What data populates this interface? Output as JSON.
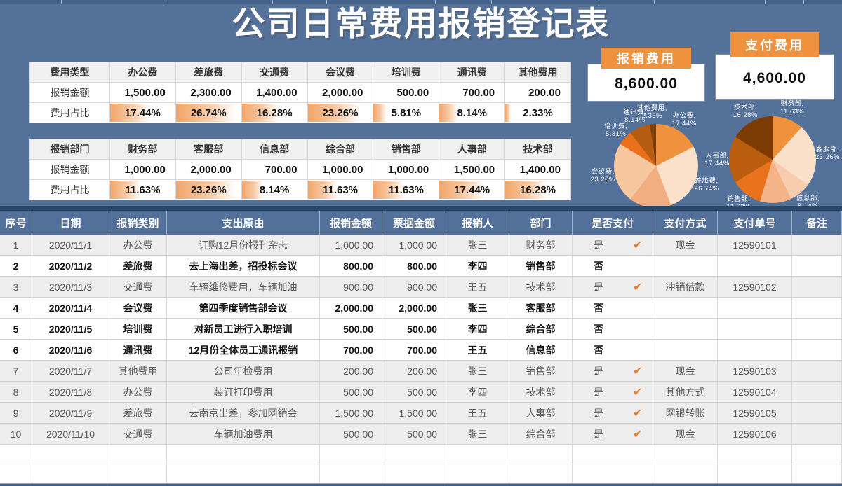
{
  "title": "公司日常费用报销登记表",
  "icons": {
    "check": "✔"
  },
  "colors": {
    "background": "#54719A",
    "accent_orange": "#F0913E",
    "header_blue": "#527099",
    "paid_row_bg": "#EDEDED",
    "check_orange": "#ED7D31",
    "databar_orange": "#F2A567"
  },
  "summary_cards": [
    {
      "label": "报销费用",
      "value": "8,600.00"
    },
    {
      "label": "支付费用",
      "value": "4,600.00"
    }
  ],
  "category_table": {
    "corner_label": "费用类型",
    "amount_row_label": "报销金额",
    "percent_row_label": "费用占比",
    "columns": [
      {
        "name": "办公费",
        "amount": "1,500.00",
        "percent": "17.44%",
        "percent_value": 17.44
      },
      {
        "name": "差旅费",
        "amount": "2,300.00",
        "percent": "26.74%",
        "percent_value": 26.74
      },
      {
        "name": "交通费",
        "amount": "1,400.00",
        "percent": "16.28%",
        "percent_value": 16.28
      },
      {
        "name": "会议费",
        "amount": "2,000.00",
        "percent": "23.26%",
        "percent_value": 23.26
      },
      {
        "name": "培训费",
        "amount": "500.00",
        "percent": "5.81%",
        "percent_value": 5.81
      },
      {
        "name": "通讯费",
        "amount": "700.00",
        "percent": "8.14%",
        "percent_value": 8.14
      },
      {
        "name": "其他费用",
        "amount": "200.00",
        "percent": "2.33%",
        "percent_value": 2.33
      }
    ]
  },
  "department_table": {
    "corner_label": "报销部门",
    "amount_row_label": "报销金额",
    "percent_row_label": "费用占比",
    "columns": [
      {
        "name": "财务部",
        "amount": "1,000.00",
        "percent": "11.63%",
        "percent_value": 11.63
      },
      {
        "name": "客服部",
        "amount": "2,000.00",
        "percent": "23.26%",
        "percent_value": 23.26
      },
      {
        "name": "信息部",
        "amount": "700.00",
        "percent": "8.14%",
        "percent_value": 8.14
      },
      {
        "name": "综合部",
        "amount": "1,000.00",
        "percent": "11.63%",
        "percent_value": 11.63
      },
      {
        "name": "销售部",
        "amount": "1,000.00",
        "percent": "11.63%",
        "percent_value": 11.63
      },
      {
        "name": "人事部",
        "amount": "1,500.00",
        "percent": "17.44%",
        "percent_value": 17.44
      },
      {
        "name": "技术部",
        "amount": "1,400.00",
        "percent": "16.28%",
        "percent_value": 16.28
      }
    ]
  },
  "chart_data": [
    {
      "type": "pie",
      "title": "报销费用",
      "total": "8,600.00",
      "labels": [
        "办公费",
        "差旅费",
        "交通费",
        "会议费",
        "培训费",
        "通讯费",
        "其他费用"
      ],
      "values": [
        17.44,
        26.74,
        16.28,
        23.26,
        5.81,
        8.14,
        2.33
      ],
      "colors": [
        "#F0913C",
        "#FBE1CA",
        "#F2AE80",
        "#F6C69F",
        "#E9701A",
        "#B65C12",
        "#7C3E05"
      ],
      "legend_position": "none",
      "label_format": "name, percent"
    },
    {
      "type": "pie",
      "title": "支付费用",
      "total": "4,600.00",
      "labels": [
        "财务部",
        "客服部",
        "信息部",
        "综合部",
        "销售部",
        "人事部",
        "技术部"
      ],
      "values": [
        11.63,
        23.26,
        8.14,
        11.63,
        11.63,
        17.44,
        16.28
      ],
      "colors": [
        "#F0913C",
        "#FAE0C8",
        "#F8CDAE",
        "#F4B488",
        "#E8731C",
        "#BA5D0E",
        "#7C3B03"
      ],
      "legend_position": "none",
      "label_format": "name, percent"
    }
  ],
  "main_table": {
    "headers": [
      "序号",
      "日期",
      "报销类别",
      "支出原由",
      "报销金额",
      "票据金额",
      "报销人",
      "部门",
      "是否支付",
      "支付方式",
      "支付单号",
      "备注"
    ],
    "rows": [
      {
        "no": "1",
        "date": "2020/11/1",
        "category": "办公费",
        "reason": "订购12月份报刊杂志",
        "amount": "1,000.00",
        "invoice": "1,000.00",
        "person": "张三",
        "dept": "财务部",
        "paid": "是",
        "checked": true,
        "method": "现金",
        "voucher": "12590101",
        "note": ""
      },
      {
        "no": "2",
        "date": "2020/11/2",
        "category": "差旅费",
        "reason": "去上海出差，招投标会议",
        "amount": "800.00",
        "invoice": "800.00",
        "person": "李四",
        "dept": "销售部",
        "paid": "否",
        "checked": false,
        "method": "",
        "voucher": "",
        "note": ""
      },
      {
        "no": "3",
        "date": "2020/11/3",
        "category": "交通费",
        "reason": "车辆维修费用，车辆加油",
        "amount": "900.00",
        "invoice": "900.00",
        "person": "王五",
        "dept": "技术部",
        "paid": "是",
        "checked": true,
        "method": "冲销借款",
        "voucher": "12590102",
        "note": ""
      },
      {
        "no": "4",
        "date": "2020/11/4",
        "category": "会议费",
        "reason": "第四季度销售部会议",
        "amount": "2,000.00",
        "invoice": "2,000.00",
        "person": "张三",
        "dept": "客服部",
        "paid": "否",
        "checked": false,
        "method": "",
        "voucher": "",
        "note": ""
      },
      {
        "no": "5",
        "date": "2020/11/5",
        "category": "培训费",
        "reason": "对新员工进行入职培训",
        "amount": "500.00",
        "invoice": "500.00",
        "person": "李四",
        "dept": "综合部",
        "paid": "否",
        "checked": false,
        "method": "",
        "voucher": "",
        "note": ""
      },
      {
        "no": "6",
        "date": "2020/11/6",
        "category": "通讯费",
        "reason": "12月份全体员工通讯报销",
        "amount": "700.00",
        "invoice": "700.00",
        "person": "王五",
        "dept": "信息部",
        "paid": "否",
        "checked": false,
        "method": "",
        "voucher": "",
        "note": ""
      },
      {
        "no": "7",
        "date": "2020/11/7",
        "category": "其他费用",
        "reason": "公司年检费用",
        "amount": "200.00",
        "invoice": "200.00",
        "person": "张三",
        "dept": "销售部",
        "paid": "是",
        "checked": true,
        "method": "现金",
        "voucher": "12590103",
        "note": ""
      },
      {
        "no": "8",
        "date": "2020/11/8",
        "category": "办公费",
        "reason": "装订打印费用",
        "amount": "500.00",
        "invoice": "500.00",
        "person": "李四",
        "dept": "技术部",
        "paid": "是",
        "checked": true,
        "method": "其他方式",
        "voucher": "12590104",
        "note": ""
      },
      {
        "no": "9",
        "date": "2020/11/9",
        "category": "差旅费",
        "reason": "去南京出差，参加网销会",
        "amount": "1,500.00",
        "invoice": "1,500.00",
        "person": "王五",
        "dept": "人事部",
        "paid": "是",
        "checked": true,
        "method": "网银转账",
        "voucher": "12590105",
        "note": ""
      },
      {
        "no": "10",
        "date": "2020/11/10",
        "category": "交通费",
        "reason": "车辆加油费用",
        "amount": "500.00",
        "invoice": "500.00",
        "person": "张三",
        "dept": "综合部",
        "paid": "是",
        "checked": true,
        "method": "现金",
        "voucher": "12590106",
        "note": ""
      }
    ],
    "empty_row_count": 2
  }
}
